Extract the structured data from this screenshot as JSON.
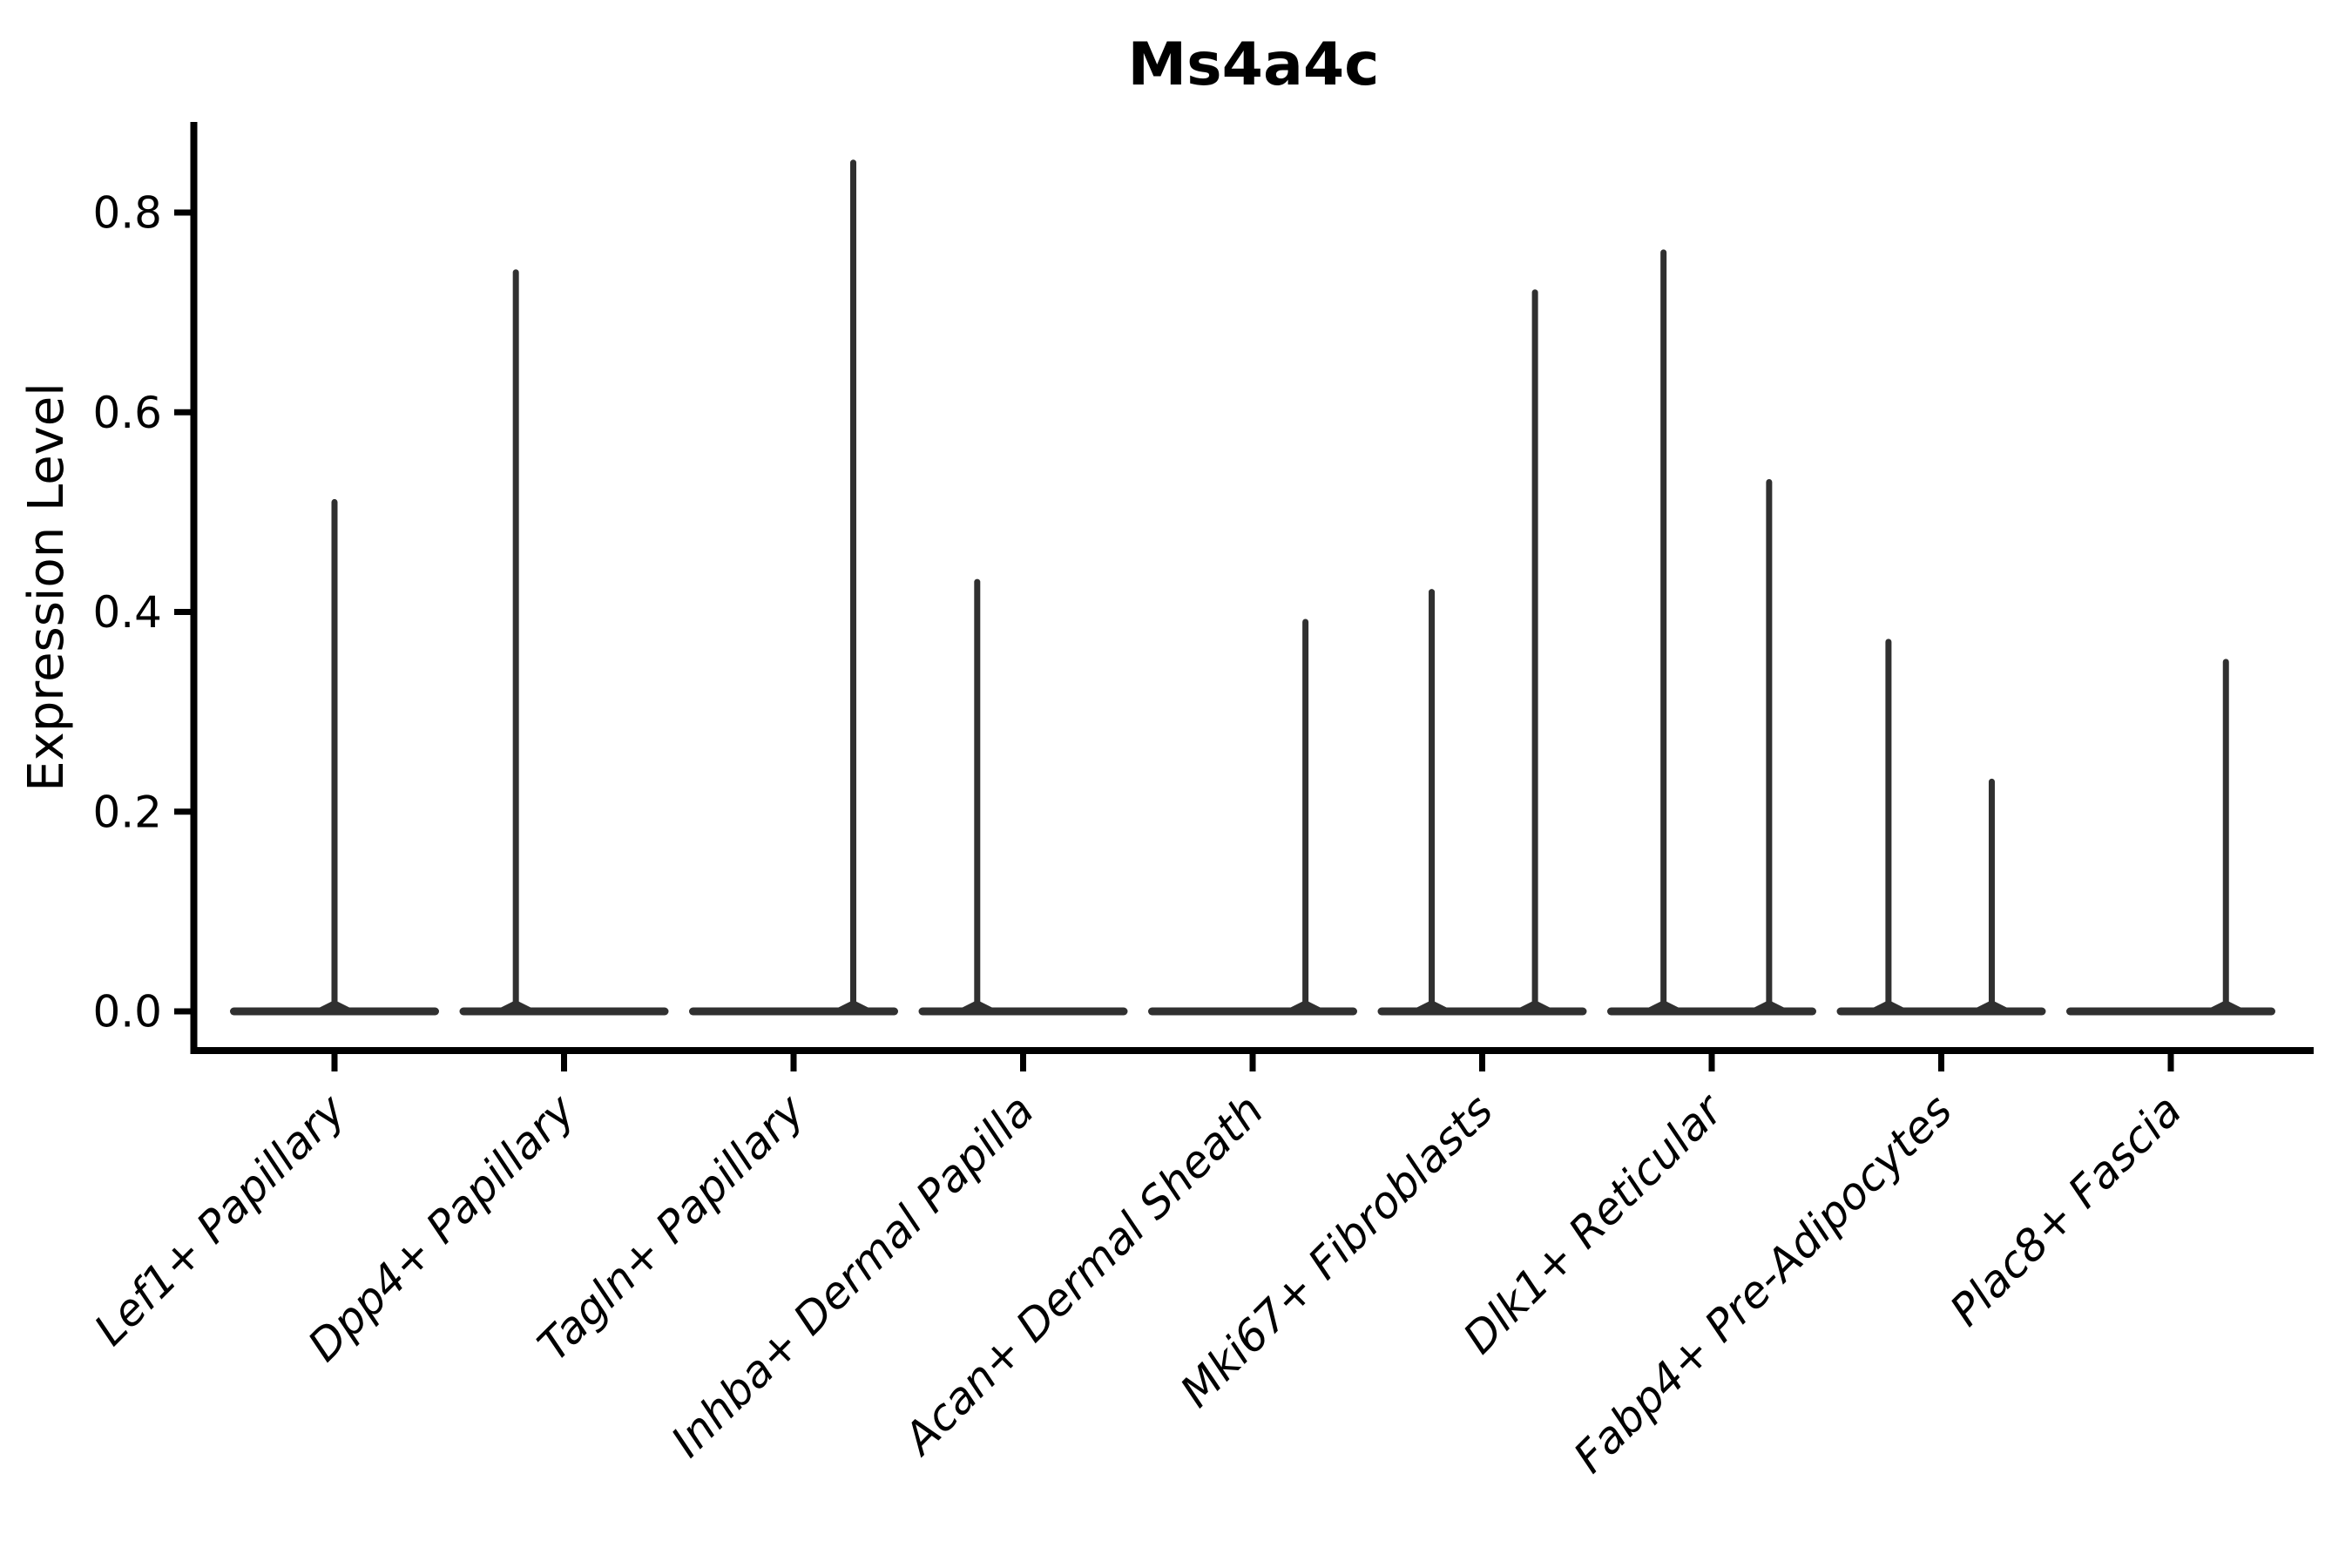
{
  "chart_data": {
    "type": "violin",
    "title": "Ms4a4c",
    "ylabel": "Expression Level",
    "xlabel": "",
    "categories": [
      "Lef1+ Papillary",
      "Dpp4+ Papillary",
      "Tagln+ Papillary",
      "Inhba+ Dermal Papilla",
      "Acan+ Dermal Sheath",
      "Mki67+ Fibroblasts",
      "Dlk1+ Reticular",
      "Fabp4+ Pre-Adipocytes",
      "Plac8+ Fascia"
    ],
    "series": [
      {
        "category": "Lef1+ Papillary",
        "spikes": [
          {
            "offset": 0.0,
            "max_value": 0.51
          }
        ]
      },
      {
        "category": "Dpp4+ Papillary",
        "spikes": [
          {
            "offset": -0.21,
            "max_value": 0.74
          }
        ]
      },
      {
        "category": "Tagln+ Papillary",
        "spikes": [
          {
            "offset": 0.26,
            "max_value": 0.85
          }
        ]
      },
      {
        "category": "Inhba+ Dermal Papilla",
        "spikes": [
          {
            "offset": -0.2,
            "max_value": 0.43
          }
        ]
      },
      {
        "category": "Acan+ Dermal Sheath",
        "spikes": [
          {
            "offset": 0.23,
            "max_value": 0.39
          }
        ]
      },
      {
        "category": "Mki67+ Fibroblasts",
        "spikes": [
          {
            "offset": -0.22,
            "max_value": 0.42
          },
          {
            "offset": 0.23,
            "max_value": 0.72
          }
        ]
      },
      {
        "category": "Dlk1+ Reticular",
        "spikes": [
          {
            "offset": -0.21,
            "max_value": 0.76
          },
          {
            "offset": 0.25,
            "max_value": 0.53
          }
        ]
      },
      {
        "category": "Fabp4+ Pre-Adipocytes",
        "spikes": [
          {
            "offset": -0.23,
            "max_value": 0.37
          },
          {
            "offset": 0.22,
            "max_value": 0.23
          }
        ]
      },
      {
        "category": "Plac8+ Fascia",
        "spikes": [
          {
            "offset": 0.24,
            "max_value": 0.35
          }
        ]
      }
    ],
    "baseline_value": 0.0,
    "violin_base_halfwidth": 0.455,
    "yticks": [
      0.0,
      0.2,
      0.4,
      0.6,
      0.8
    ],
    "ytick_labels": [
      "0.0",
      "0.2",
      "0.4",
      "0.6",
      "0.8"
    ],
    "ylim": [
      -0.043,
      0.892
    ],
    "grid": false,
    "legend": null,
    "colors": {
      "violin": "#303030",
      "axis": "#000000",
      "text": "#000000",
      "background": "#ffffff"
    }
  }
}
